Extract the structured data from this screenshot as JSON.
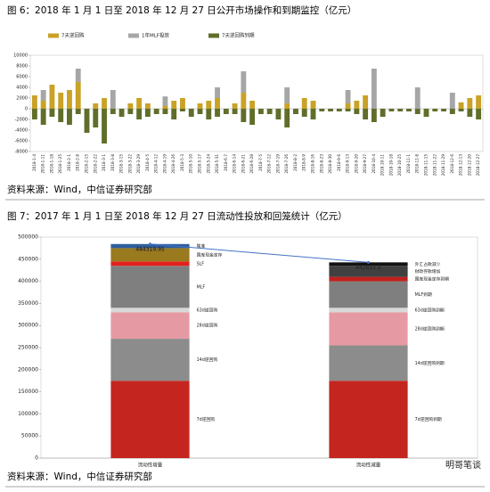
{
  "chart_data": [
    {
      "type": "bar",
      "stacked": true,
      "title": "图 6：2018 年 1 月 1 日至 2018 年 12 月 27 日公开市场操作和到期监控（亿元）",
      "source": "资料来源：Wind，中信证券研究部",
      "categories": [
        "2018-1-4",
        "2018-1-11",
        "2018-1-18",
        "2018-1-25",
        "2018-2-1",
        "2018-2-8",
        "2018-2-15",
        "2018-2-22",
        "2018-3-1",
        "2018-3-8",
        "2018-3-15",
        "2018-3-22",
        "2018-3-29",
        "2018-4-5",
        "2018-4-12",
        "2018-4-19",
        "2018-4-26",
        "2018-5-3",
        "2018-5-10",
        "2018-5-17",
        "2018-5-24",
        "2018-5-31",
        "2018-6-7",
        "2018-6-14",
        "2018-6-21",
        "2018-6-28",
        "2018-7-5",
        "2018-7-12",
        "2018-7-19",
        "2018-7-26",
        "2018-8-2",
        "2018-8-9",
        "2018-8-16",
        "2018-8-23",
        "2018-8-30",
        "2018-9-6",
        "2018-9-13",
        "2018-9-20",
        "2018-9-27",
        "2018-10-4",
        "2018-10-11",
        "2018-10-18",
        "2018-10-25",
        "2018-11-1",
        "2018-11-8",
        "2018-11-15",
        "2018-11-22",
        "2018-11-29",
        "2018-12-6",
        "2018-12-13",
        "2018-12-20",
        "2018-12-27"
      ],
      "series": [
        {
          "name": "7天逆回购",
          "color": "#c9a227",
          "values": [
            2500,
            1500,
            4500,
            3000,
            3500,
            5000,
            0,
            1000,
            2000,
            0,
            0,
            1000,
            2000,
            1000,
            0,
            500,
            1500,
            2000,
            0,
            1000,
            1500,
            2000,
            0,
            1000,
            3000,
            1500,
            0,
            0,
            0,
            1000,
            0,
            2000,
            1500,
            0,
            0,
            0,
            1000,
            1500,
            2500,
            0,
            0,
            0,
            0,
            0,
            0,
            0,
            0,
            0,
            0,
            1200,
            2000,
            2500
          ]
        },
        {
          "name": "1年MLF投放",
          "color": "#a6a6a6",
          "values": [
            0,
            2000,
            0,
            0,
            0,
            2500,
            0,
            0,
            0,
            3500,
            0,
            0,
            0,
            0,
            0,
            1800,
            0,
            0,
            0,
            0,
            0,
            2000,
            0,
            0,
            4000,
            0,
            0,
            0,
            0,
            3000,
            0,
            0,
            0,
            0,
            0,
            0,
            2500,
            0,
            0,
            7500,
            0,
            0,
            0,
            0,
            4000,
            0,
            0,
            0,
            3000,
            0,
            0,
            0
          ]
        },
        {
          "name": "7天逆回购到期",
          "color": "#5f6e2a",
          "values": [
            -2000,
            -3000,
            -1500,
            -2500,
            -3000,
            -1000,
            -4500,
            -3500,
            -6500,
            -1000,
            -1500,
            -1000,
            -2000,
            -1500,
            -1000,
            -1000,
            -2000,
            -500,
            -1500,
            -1000,
            -2000,
            -1500,
            -1000,
            -1000,
            -2500,
            -3000,
            -1000,
            -1000,
            -2000,
            -3500,
            -1000,
            -1500,
            -2000,
            -500,
            -500,
            -500,
            -500,
            -1000,
            -2000,
            -2500,
            -1500,
            -500,
            -500,
            -500,
            -1000,
            -1500,
            -500,
            -500,
            -1000,
            -500,
            -1500,
            -2000
          ]
        }
      ],
      "ylim": [
        -8000,
        10000
      ],
      "yticks": [
        -8000,
        -6000,
        -4000,
        -2000,
        0,
        2000,
        4000,
        6000,
        8000,
        10000
      ],
      "legend": "top"
    },
    {
      "type": "bar",
      "stacked": true,
      "title": "图 7：2017 年 1 月 1 日至 2018 年 12 月 27 日流动性投放和回笼统计（亿元）",
      "source": "资料来源：Wind，中信证券研究部",
      "categories": [
        "流动性增量",
        "流动性减量"
      ],
      "series": [
        {
          "name": "7d逆回购",
          "color": "#c4261f",
          "values": [
            175000,
            null
          ]
        },
        {
          "name": "14d逆回购",
          "color": "#8c8c8c",
          "values": [
            95000,
            null
          ]
        },
        {
          "name": "28d逆回购",
          "color": "#e59aa3",
          "values": [
            60000,
            null
          ]
        },
        {
          "name": "63d逆回购",
          "color": "#d9d9d9",
          "values": [
            10000,
            null
          ]
        },
        {
          "name": "MLF",
          "color": "#7f7f7f",
          "values": [
            95000,
            null
          ]
        },
        {
          "name": "SLF",
          "color": "#e3201b",
          "values": [
            10000,
            null
          ]
        },
        {
          "name": "国库现金定存",
          "color": "#9a7a1e",
          "values": [
            30000,
            null
          ]
        },
        {
          "name": "降准",
          "color": "#2e5f9e",
          "values": [
            9319.95,
            null
          ]
        },
        {
          "name": "7d逆回购到期",
          "color": "#c4261f",
          "values": [
            null,
            175000
          ]
        },
        {
          "name": "14d逆回购到期",
          "color": "#8c8c8c",
          "values": [
            null,
            80000
          ]
        },
        {
          "name": "28d逆回购到期",
          "color": "#e59aa3",
          "values": [
            null,
            75000
          ]
        },
        {
          "name": "63d逆回购到期",
          "color": "#d9d9d9",
          "values": [
            null,
            10000
          ]
        },
        {
          "name": "MLF到期",
          "color": "#7f7f7f",
          "values": [
            null,
            60000
          ]
        },
        {
          "name": "国库现金定存到期",
          "color": "#c0201c",
          "values": [
            null,
            10000
          ]
        },
        {
          "name": "财政存款增加",
          "color": "#404040",
          "values": [
            null,
            25000
          ]
        },
        {
          "name": "外汇占款减少",
          "color": "#111111",
          "values": [
            null,
            7821.2
          ]
        }
      ],
      "totals": [
        484319.95,
        442821.2
      ],
      "totals_color": "#4472c4",
      "ylim": [
        0,
        500000
      ],
      "yticks": [
        0,
        50000,
        100000,
        150000,
        200000,
        250000,
        300000,
        350000,
        400000,
        450000,
        500000
      ],
      "legend": "beside-segments"
    }
  ],
  "watermark": "明哥笔谈"
}
